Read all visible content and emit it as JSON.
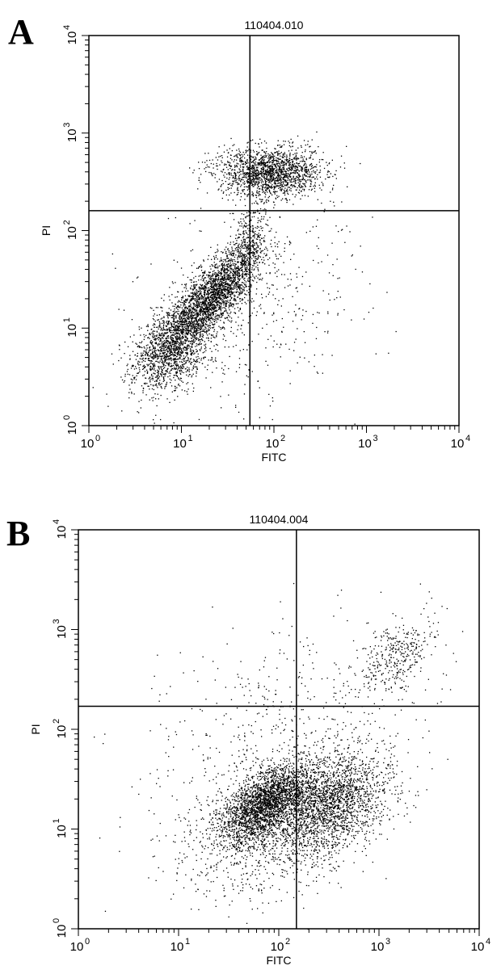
{
  "chart_data": [
    {
      "type": "scatter",
      "panel_label": "A",
      "title": "110404.010",
      "xlabel": "FITC",
      "ylabel": "PI",
      "x_scale": "log",
      "y_scale": "log",
      "xlim": [
        1,
        10000
      ],
      "ylim": [
        1,
        10000
      ],
      "x_ticks": [
        {
          "base": "10",
          "exp": "0"
        },
        {
          "base": "10",
          "exp": "1"
        },
        {
          "base": "10",
          "exp": "2"
        },
        {
          "base": "10",
          "exp": "3"
        },
        {
          "base": "10",
          "exp": "4"
        }
      ],
      "y_ticks": [
        {
          "base": "10",
          "exp": "0"
        },
        {
          "base": "10",
          "exp": "1"
        },
        {
          "base": "10",
          "exp": "2"
        },
        {
          "base": "10",
          "exp": "3"
        },
        {
          "base": "10",
          "exp": "4"
        }
      ],
      "quadrant_gate": {
        "x": 55,
        "y": 160
      },
      "grid": false,
      "point_color": "#000000",
      "clusters": [
        {
          "center": [
            12,
            12
          ],
          "spread_decades": [
            0.28,
            0.28
          ],
          "rho": 0.75,
          "count": 1900
        },
        {
          "center": [
            28,
            28
          ],
          "spread_decades": [
            0.2,
            0.22
          ],
          "rho": 0.7,
          "count": 1300
        },
        {
          "center": [
            8,
            5
          ],
          "spread_decades": [
            0.22,
            0.18
          ],
          "rho": 0.3,
          "count": 700
        },
        {
          "center": [
            90,
            400
          ],
          "spread_decades": [
            0.28,
            0.13
          ],
          "rho": 0.0,
          "count": 1700
        },
        {
          "center": [
            55,
            80
          ],
          "spread_decades": [
            0.1,
            0.25
          ],
          "rho": 0.3,
          "count": 300
        },
        {
          "center": [
            60,
            20
          ],
          "spread_decades": [
            0.55,
            0.55
          ],
          "rho": 0.2,
          "count": 500
        }
      ]
    },
    {
      "type": "scatter",
      "panel_label": "B",
      "title": "110404.004",
      "xlabel": "FITC",
      "ylabel": "PI",
      "x_scale": "log",
      "y_scale": "log",
      "xlim": [
        1,
        10000
      ],
      "ylim": [
        1,
        10000
      ],
      "x_ticks": [
        {
          "base": "10",
          "exp": "0"
        },
        {
          "base": "10",
          "exp": "1"
        },
        {
          "base": "10",
          "exp": "2"
        },
        {
          "base": "10",
          "exp": "3"
        },
        {
          "base": "10",
          "exp": "4"
        }
      ],
      "y_ticks": [
        {
          "base": "10",
          "exp": "0"
        },
        {
          "base": "10",
          "exp": "1"
        },
        {
          "base": "10",
          "exp": "2"
        },
        {
          "base": "10",
          "exp": "3"
        },
        {
          "base": "10",
          "exp": "4"
        }
      ],
      "quadrant_gate": {
        "x": 150,
        "y": 170
      },
      "grid": false,
      "point_color": "#000000",
      "clusters": [
        {
          "center": [
            70,
            18
          ],
          "spread_decades": [
            0.22,
            0.2
          ],
          "rho": 0.6,
          "count": 2300
        },
        {
          "center": [
            300,
            18
          ],
          "spread_decades": [
            0.3,
            0.25
          ],
          "rho": 0.3,
          "count": 2000
        },
        {
          "center": [
            100,
            12
          ],
          "spread_decades": [
            0.5,
            0.4
          ],
          "rho": 0.4,
          "count": 1200
        },
        {
          "center": [
            1500,
            550
          ],
          "spread_decades": [
            0.18,
            0.2
          ],
          "rho": 0.5,
          "count": 350
        },
        {
          "center": [
            100,
            100
          ],
          "spread_decades": [
            0.7,
            0.6
          ],
          "rho": 0.3,
          "count": 500
        }
      ]
    }
  ]
}
